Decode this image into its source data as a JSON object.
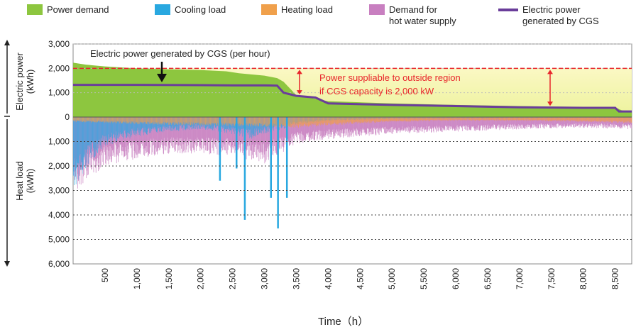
{
  "legend": {
    "power_demand": "Power demand",
    "cooling_load": "Cooling load",
    "heating_load": "Heating load",
    "hot_water_line1": "Demand for",
    "hot_water_line2": "hot water supply",
    "cgs_line1": "Electric power",
    "cgs_line2": "generated by CGS"
  },
  "colors": {
    "power_demand": "#8dc63f",
    "cooling_load": "#29a8e0",
    "heating_load": "#f0a04b",
    "hot_water": "#c87fc0",
    "cgs_line": "#6a3d9a",
    "capacity_line": "#e8262b",
    "surplus_fill": "#f3f3a8",
    "annotation_text": "#e8262b"
  },
  "axes": {
    "y_upper_label_line1": "Electric power",
    "y_upper_label_line2": "(kWh)",
    "y_lower_label_line1": "Heat load",
    "y_lower_label_line2": "(kWh)",
    "x_title": "Time（h）"
  },
  "annotations": {
    "cgs_per_hour": "Electric power generated by CGS (per hour)",
    "surplus_line1": "Power suppliable to outside region",
    "surplus_line2": "if CGS capacity is 2,000 kW"
  },
  "chart_data": {
    "type": "area",
    "x_range": [
      0,
      8760
    ],
    "x_ticks": [
      500,
      1000,
      1500,
      2000,
      2500,
      3000,
      3500,
      4000,
      4500,
      5000,
      5500,
      6000,
      6500,
      7000,
      7500,
      8000,
      8500
    ],
    "x_tick_labels": [
      "500",
      "1,000",
      "1,500",
      "2,000",
      "2,500",
      "3,000",
      "3,500",
      "4,000",
      "4,500",
      "5,000",
      "5,500",
      "6,000",
      "6,500",
      "7,000",
      "7,500",
      "8,000",
      "8,500"
    ],
    "upper_axis": {
      "range": [
        0,
        3000
      ],
      "ticks": [
        0,
        1000,
        2000,
        3000
      ],
      "tick_labels": [
        "0",
        "1,000",
        "2,000",
        "3,000"
      ]
    },
    "lower_axis": {
      "range": [
        0,
        6000
      ],
      "ticks": [
        1000,
        2000,
        3000,
        4000,
        5000,
        6000
      ],
      "tick_labels": [
        "1,000",
        "2,000",
        "3,000",
        "4,000",
        "5,000",
        "6,000"
      ],
      "inverted": true
    },
    "grid": "horizontal-dashed",
    "cgs_capacity": 2000,
    "series": [
      {
        "name": "Power demand",
        "panel": "upper",
        "x": [
          0,
          200,
          500,
          1000,
          1500,
          2000,
          2400,
          2600,
          3000,
          3200,
          3300,
          3500,
          4000,
          5000,
          6000,
          7000,
          7500,
          8000,
          8500,
          8600,
          8760
        ],
        "values": [
          2230,
          2150,
          2080,
          2000,
          1960,
          1930,
          1880,
          1800,
          1700,
          1600,
          1450,
          900,
          650,
          560,
          500,
          450,
          430,
          420,
          400,
          280,
          200
        ]
      },
      {
        "name": "Electric power generated by CGS",
        "panel": "upper",
        "x": [
          0,
          1000,
          2000,
          2500,
          3000,
          3200,
          3300,
          3500,
          3800,
          4000,
          5000,
          6000,
          7000,
          8000,
          8500,
          8560,
          8760
        ],
        "values": [
          1320,
          1320,
          1310,
          1300,
          1300,
          1290,
          1000,
          870,
          800,
          560,
          500,
          450,
          400,
          380,
          380,
          230,
          230
        ]
      },
      {
        "name": "Cooling load",
        "panel": "lower",
        "x": [
          0,
          100,
          300,
          500,
          1000,
          1500,
          2000,
          2500,
          2800,
          3000,
          3300,
          3500,
          4000,
          5000,
          6000,
          7000,
          8000,
          8760
        ],
        "values": [
          3000,
          2600,
          1800,
          1200,
          800,
          600,
          500,
          700,
          900,
          700,
          500,
          300,
          150,
          80,
          60,
          50,
          40,
          30
        ]
      },
      {
        "name": "Heating load",
        "panel": "lower",
        "x": [
          0,
          500,
          1000,
          2000,
          3000,
          3500,
          4000,
          5000,
          6000,
          7000,
          8000,
          8760
        ],
        "values": [
          200,
          250,
          300,
          350,
          400,
          450,
          350,
          200,
          150,
          150,
          200,
          250
        ]
      },
      {
        "name": "Demand for hot water supply",
        "panel": "lower",
        "x": [
          0,
          300,
          500,
          1000,
          1500,
          2000,
          2500,
          3000,
          3500,
          4000,
          5000,
          6000,
          7000,
          8000,
          8760
        ],
        "values": [
          3100,
          2400,
          2000,
          1700,
          1500,
          1500,
          1600,
          1900,
          1100,
          900,
          700,
          600,
          500,
          450,
          500
        ]
      }
    ],
    "spikes_lower": [
      {
        "x": 2690,
        "value": 4200
      },
      {
        "x": 3210,
        "value": 4550
      },
      {
        "x": 2300,
        "value": 2600
      },
      {
        "x": 2560,
        "value": 2100
      },
      {
        "x": 3100,
        "value": 3300
      },
      {
        "x": 3350,
        "value": 3300
      }
    ]
  }
}
